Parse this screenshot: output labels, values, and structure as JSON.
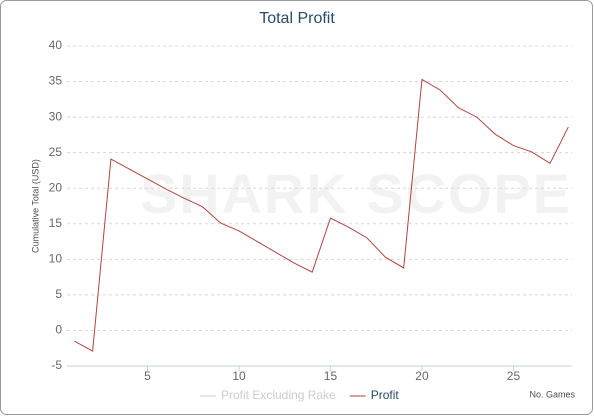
{
  "chart_data": {
    "type": "line",
    "title": "Total Profit",
    "watermark": "SHARK SCOPE",
    "ylabel": "Cumulative Total (USD)",
    "xlabel": "No. Games",
    "x": [
      1,
      2,
      3,
      4,
      5,
      6,
      7,
      8,
      9,
      10,
      11,
      12,
      13,
      14,
      15,
      16,
      17,
      18,
      19,
      20,
      21,
      22,
      23,
      24,
      25,
      26,
      27,
      28
    ],
    "series": [
      {
        "name": "Profit Excluding Rake",
        "color": "#cccccc",
        "hidden": true
      },
      {
        "name": "Profit",
        "color": "#b2433f",
        "values": [
          -1.5,
          -2.9,
          24.1,
          22.7,
          21.3,
          19.9,
          18.6,
          17.4,
          15.1,
          14.0,
          12.5,
          11.0,
          9.5,
          8.2,
          15.8,
          14.5,
          13.0,
          10.3,
          8.8,
          35.3,
          33.8,
          31.3,
          30.0,
          27.6,
          26.0,
          25.1,
          23.5,
          28.6
        ]
      }
    ],
    "xlim": [
      0.6,
      28.2
    ],
    "ylim": [
      -5,
      40
    ],
    "xticks": [
      5,
      10,
      15,
      20,
      25
    ],
    "yticks": [
      -5,
      0,
      5,
      10,
      15,
      20,
      25,
      30,
      35,
      40
    ],
    "grid": true
  }
}
